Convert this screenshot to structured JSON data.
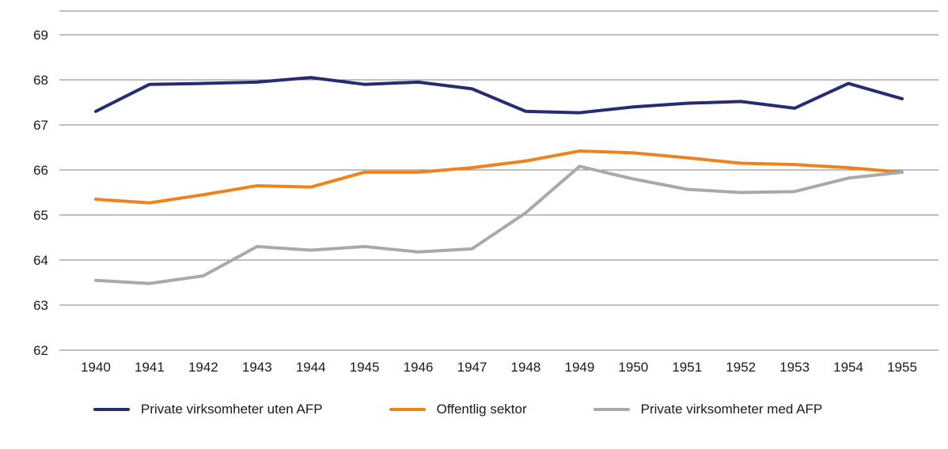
{
  "chart_data": {
    "type": "line",
    "title": "",
    "xlabel": "",
    "ylabel": "",
    "x": [
      1940,
      1941,
      1942,
      1943,
      1944,
      1945,
      1946,
      1947,
      1948,
      1949,
      1950,
      1951,
      1952,
      1953,
      1954,
      1955
    ],
    "series": [
      {
        "name": "Private virksomheter uten AFP",
        "color": "#252c6f",
        "values": [
          67.3,
          67.9,
          67.92,
          67.95,
          68.05,
          67.9,
          67.95,
          67.8,
          67.3,
          67.27,
          67.4,
          67.48,
          67.52,
          67.37,
          67.92,
          67.58
        ]
      },
      {
        "name": "Offentlig sektor",
        "color": "#f0821e",
        "values": [
          65.35,
          65.27,
          65.45,
          65.65,
          65.62,
          65.95,
          65.95,
          66.05,
          66.2,
          66.42,
          66.38,
          66.27,
          66.15,
          66.12,
          66.05,
          65.95
        ]
      },
      {
        "name": "Private virksomheter med AFP",
        "color": "#a9a9a9",
        "values": [
          63.55,
          63.48,
          63.65,
          64.3,
          64.22,
          64.3,
          64.18,
          64.25,
          65.05,
          66.08,
          65.8,
          65.57,
          65.5,
          65.52,
          65.82,
          65.95
        ]
      }
    ],
    "ylim": [
      62,
      69.5
    ],
    "yticks": [
      62,
      63,
      64,
      65,
      66,
      67,
      68,
      69
    ],
    "grid": true,
    "gridline_color": "#808080",
    "legend_position": "bottom"
  }
}
